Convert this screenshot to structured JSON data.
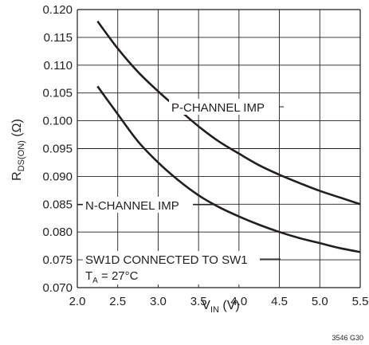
{
  "chart_data": {
    "type": "line",
    "x_ticks": [
      "2.0",
      "2.5",
      "3.0",
      "3.5",
      "4.0",
      "4.5",
      "5.0",
      "5.5"
    ],
    "y_ticks": [
      "0.070",
      "0.075",
      "0.080",
      "0.085",
      "0.090",
      "0.095",
      "0.100",
      "0.105",
      "0.110",
      "0.115",
      "0.120"
    ],
    "xlim": [
      2.0,
      5.5
    ],
    "ylim": [
      0.07,
      0.12
    ],
    "grid": true,
    "xlabel": {
      "main": "V",
      "sub": "IN",
      "unit": " (V)"
    },
    "ylabel": {
      "main": "R",
      "sub": "DS(ON)",
      "unit": " (Ω)"
    },
    "series": [
      {
        "name": "P-CHANNEL IMP",
        "color": "#231f20",
        "x": [
          2.25,
          2.5,
          2.75,
          3.0,
          3.25,
          3.5,
          3.75,
          4.0,
          4.25,
          4.5,
          4.75,
          5.0,
          5.25,
          5.5
        ],
        "y": [
          0.1179,
          0.113,
          0.1088,
          0.1053,
          0.1021,
          0.099,
          0.0963,
          0.0941,
          0.092,
          0.0903,
          0.0888,
          0.0874,
          0.0862,
          0.085
        ]
      },
      {
        "name": "N-CHANNEL IMP",
        "color": "#231f20",
        "x": [
          2.25,
          2.5,
          2.75,
          3.0,
          3.25,
          3.5,
          3.75,
          4.0,
          4.25,
          4.5,
          4.75,
          5.0,
          5.25,
          5.5
        ],
        "y": [
          0.1062,
          0.1012,
          0.0963,
          0.0925,
          0.0893,
          0.0866,
          0.0845,
          0.0828,
          0.0813,
          0.08,
          0.0789,
          0.078,
          0.0771,
          0.0764
        ]
      }
    ],
    "annotations": {
      "p_label": "P-CHANNEL IMP",
      "n_label": "N-CHANNEL IMP",
      "condition_line1": "SW1D CONNECTED TO SW1",
      "condition_line2_main": "T",
      "condition_line2_sub": "A",
      "condition_line2_rest": " = 27°C"
    },
    "figure_id": "3546 G30"
  }
}
